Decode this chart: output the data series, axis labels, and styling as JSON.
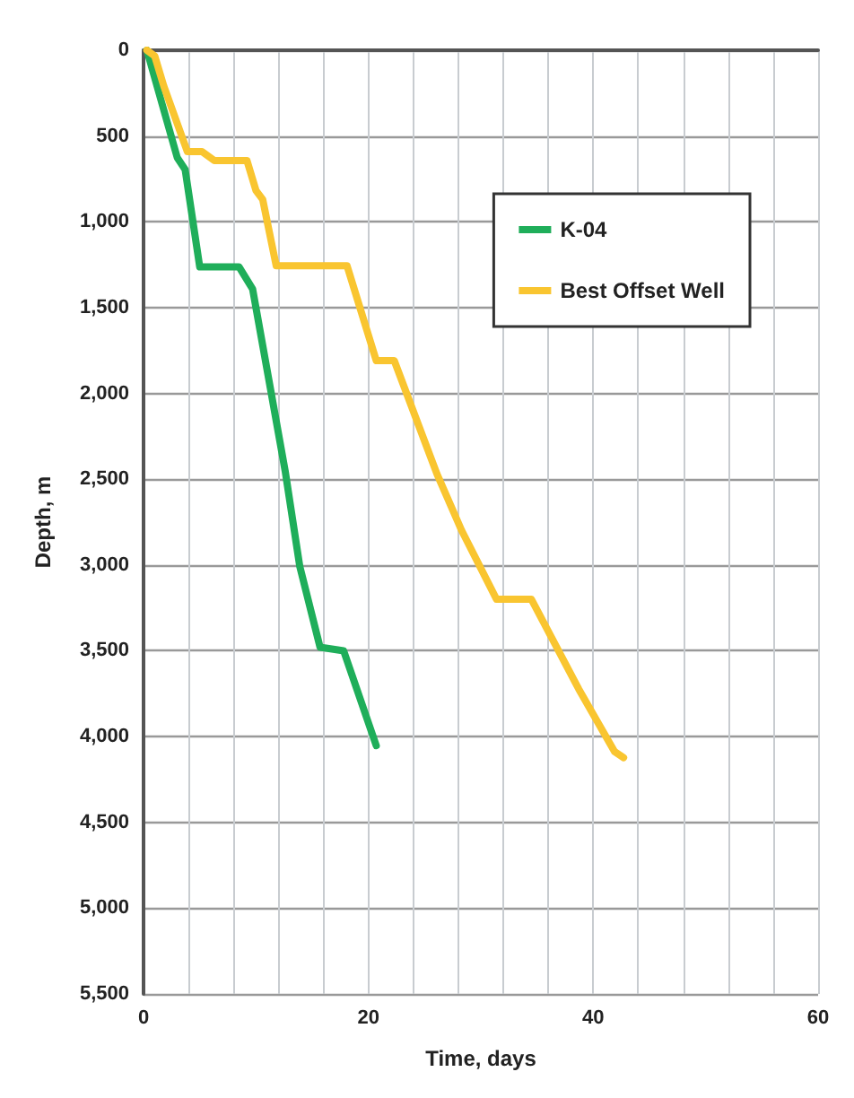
{
  "chart_data": {
    "type": "line",
    "xlabel": "Time, days",
    "ylabel": "Depth, m",
    "xlim": [
      0,
      60
    ],
    "xticks": [
      0,
      {
        "value": 4,
        "label": null
      },
      {
        "value": 8,
        "label": null
      },
      {
        "value": 12,
        "label": null
      },
      {
        "value": 16,
        "label": null
      },
      20,
      {
        "value": 24,
        "label": null
      },
      {
        "value": 28,
        "label": null
      },
      {
        "value": 32,
        "label": null
      },
      {
        "value": 36,
        "label": null
      },
      40,
      {
        "value": 44,
        "label": null
      },
      {
        "value": 48,
        "label": null
      },
      {
        "value": 52,
        "label": null
      },
      {
        "value": 56,
        "label": null
      },
      60
    ],
    "ylim": [
      5500,
      0
    ],
    "yticks": [
      0,
      500,
      {
        "value": 1000,
        "label": "1,000"
      },
      {
        "value": 1500,
        "label": "1,500"
      },
      {
        "value": 2000,
        "label": "2,000"
      },
      {
        "value": 2500,
        "label": "2,500"
      },
      {
        "value": 3000,
        "label": "3,000"
      },
      {
        "value": 3500,
        "label": "3,500"
      },
      {
        "value": 4000,
        "label": "4,000"
      },
      {
        "value": 4500,
        "label": "4,500"
      },
      {
        "value": 5000,
        "label": "5,000"
      },
      {
        "value": 5500,
        "label": "5,500"
      }
    ],
    "grid": true,
    "legend": "top right",
    "marker": "none",
    "line_style": "solid",
    "series": [
      {
        "name": "K-04",
        "color": "#1fae5a",
        "x": [
          0.3,
          3.0,
          3.7,
          5.0,
          8.5,
          9.7,
          12.6,
          13.9,
          15.7,
          17.8,
          20.7
        ],
        "values": [
          0,
          626,
          695,
          1263,
          1263,
          1391,
          2453,
          3009,
          3479,
          3500,
          4053
        ]
      },
      {
        "name": "Best Offset Well",
        "color": "#f9c530",
        "x": [
          0.3,
          1.0,
          1.8,
          3.9,
          5.2,
          6.3,
          9.2,
          10.0,
          10.6,
          11.8,
          18.1,
          20.7,
          22.3,
          26.1,
          28.3,
          31.4,
          34.5,
          38.7,
          41.9,
          42.7
        ],
        "values": [
          0,
          34,
          209,
          591,
          591,
          643,
          643,
          817,
          870,
          1256,
          1256,
          1809,
          1809,
          2470,
          2800,
          3200,
          3200,
          3722,
          4088,
          4123
        ]
      }
    ]
  }
}
